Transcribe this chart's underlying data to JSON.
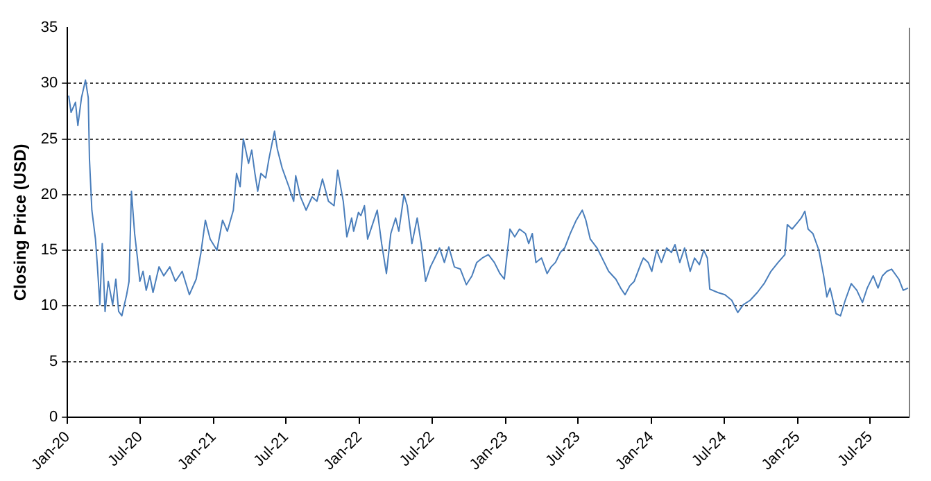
{
  "chart_data": {
    "type": "line",
    "ylabel": "Closing Price (USD)",
    "xlim": [
      "2020-01-01",
      "2025-10-06"
    ],
    "ylim": [
      0,
      35
    ],
    "yticks": [
      0,
      5,
      10,
      15,
      20,
      25,
      30,
      35
    ],
    "xticks": [
      {
        "value": "2020-01-01",
        "label": "Jan-20"
      },
      {
        "value": "2020-07-01",
        "label": "Jul-20"
      },
      {
        "value": "2021-01-01",
        "label": "Jan-21"
      },
      {
        "value": "2021-07-01",
        "label": "Jul-21"
      },
      {
        "value": "2022-01-01",
        "label": "Jan-22"
      },
      {
        "value": "2022-07-01",
        "label": "Jul-22"
      },
      {
        "value": "2023-01-01",
        "label": "Jan-23"
      },
      {
        "value": "2023-07-01",
        "label": "Jul-23"
      },
      {
        "value": "2024-01-01",
        "label": "Jan-24"
      },
      {
        "value": "2024-07-01",
        "label": "Jul-24"
      },
      {
        "value": "2025-01-01",
        "label": "Jan-25"
      },
      {
        "value": "2025-07-01",
        "label": "Jul-25"
      }
    ],
    "grid": "y",
    "legend": false,
    "marker": "none",
    "line_style": "solid",
    "series": [
      {
        "color": "#4a7ebb",
        "x": [
          "2020-01-04",
          "2020-01-10",
          "2020-01-21",
          "2020-01-27",
          "2020-02-05",
          "2020-02-15",
          "2020-02-22",
          "2020-02-25",
          "2020-03-02",
          "2020-03-11",
          "2020-03-16",
          "2020-03-22",
          "2020-03-28",
          "2020-04-04",
          "2020-04-12",
          "2020-04-23",
          "2020-05-01",
          "2020-05-08",
          "2020-05-16",
          "2020-05-28",
          "2020-06-03",
          "2020-06-09",
          "2020-06-17",
          "2020-06-24",
          "2020-06-30",
          "2020-07-08",
          "2020-07-16",
          "2020-07-25",
          "2020-08-02",
          "2020-08-17",
          "2020-08-29",
          "2020-09-13",
          "2020-09-27",
          "2020-10-14",
          "2020-11-01",
          "2020-11-18",
          "2020-11-30",
          "2020-12-11",
          "2020-12-23",
          "2021-01-09",
          "2021-01-23",
          "2021-02-04",
          "2021-02-19",
          "2021-02-27",
          "2021-03-08",
          "2021-03-16",
          "2021-03-29",
          "2021-04-06",
          "2021-04-14",
          "2021-04-21",
          "2021-04-29",
          "2021-05-11",
          "2021-05-19",
          "2021-06-02",
          "2021-06-09",
          "2021-06-21",
          "2021-07-08",
          "2021-07-20",
          "2021-07-25",
          "2021-08-06",
          "2021-08-20",
          "2021-09-04",
          "2021-09-16",
          "2021-09-30",
          "2021-10-15",
          "2021-10-29",
          "2021-11-07",
          "2021-11-21",
          "2021-11-30",
          "2021-12-12",
          "2021-12-17",
          "2021-12-29",
          "2022-01-04",
          "2022-01-13",
          "2022-01-21",
          "2022-02-02",
          "2022-02-14",
          "2022-02-25",
          "2022-03-09",
          "2022-03-20",
          "2022-04-01",
          "2022-04-09",
          "2022-04-22",
          "2022-04-30",
          "2022-05-12",
          "2022-05-25",
          "2022-06-04",
          "2022-06-15",
          "2022-06-27",
          "2022-07-08",
          "2022-07-20",
          "2022-08-01",
          "2022-08-12",
          "2022-08-26",
          "2022-09-10",
          "2022-09-25",
          "2022-10-09",
          "2022-10-21",
          "2022-11-04",
          "2022-11-19",
          "2022-12-04",
          "2022-12-18",
          "2022-12-29",
          "2023-01-12",
          "2023-01-24",
          "2023-02-05",
          "2023-02-20",
          "2023-02-28",
          "2023-03-09",
          "2023-03-18",
          "2023-04-01",
          "2023-04-15",
          "2023-04-25",
          "2023-05-06",
          "2023-05-18",
          "2023-05-29",
          "2023-06-12",
          "2023-06-27",
          "2023-07-12",
          "2023-07-21",
          "2023-08-01",
          "2023-08-18",
          "2023-09-05",
          "2023-09-16",
          "2023-10-04",
          "2023-10-16",
          "2023-10-27",
          "2023-11-08",
          "2023-11-19",
          "2023-12-07",
          "2023-12-12",
          "2023-12-24",
          "2024-01-02",
          "2024-01-14",
          "2024-01-26",
          "2024-02-08",
          "2024-02-20",
          "2024-02-29",
          "2024-03-12",
          "2024-03-24",
          "2024-04-07",
          "2024-04-18",
          "2024-04-30",
          "2024-05-11",
          "2024-05-20",
          "2024-05-26",
          "2024-06-15",
          "2024-07-03",
          "2024-07-20",
          "2024-08-04",
          "2024-08-18",
          "2024-09-04",
          "2024-09-22",
          "2024-10-09",
          "2024-10-26",
          "2024-11-13",
          "2024-11-30",
          "2024-12-06",
          "2024-12-18",
          "2025-01-01",
          "2025-01-10",
          "2025-01-19",
          "2025-01-27",
          "2025-02-08",
          "2025-02-23",
          "2025-03-07",
          "2025-03-15",
          "2025-03-23",
          "2025-04-07",
          "2025-04-18",
          "2025-04-30",
          "2025-05-15",
          "2025-05-29",
          "2025-06-12",
          "2025-06-24",
          "2025-07-09",
          "2025-07-21",
          "2025-08-01",
          "2025-08-12",
          "2025-08-24",
          "2025-09-11",
          "2025-09-22",
          "2025-10-04"
        ],
        "values": [
          28.9,
          27.4,
          28.3,
          26.2,
          28.7,
          30.3,
          28.7,
          23.2,
          18.6,
          16.0,
          13.5,
          10.1,
          15.6,
          9.5,
          12.2,
          10.1,
          12.4,
          9.5,
          9.1,
          11.0,
          12.2,
          20.3,
          16.5,
          14.3,
          12.2,
          13.1,
          11.4,
          12.7,
          11.2,
          13.5,
          12.7,
          13.5,
          12.2,
          13.1,
          11.0,
          12.4,
          14.8,
          17.7,
          16.0,
          15.0,
          17.7,
          16.7,
          18.6,
          21.9,
          20.7,
          25.0,
          22.8,
          24.0,
          21.9,
          20.3,
          21.9,
          21.5,
          23.2,
          25.7,
          24.1,
          22.4,
          20.7,
          19.4,
          21.7,
          19.8,
          18.6,
          19.8,
          19.4,
          21.4,
          19.4,
          19.0,
          22.2,
          19.4,
          16.2,
          17.9,
          16.7,
          18.4,
          18.1,
          19.0,
          16.0,
          17.3,
          18.6,
          15.6,
          12.9,
          16.5,
          17.9,
          16.7,
          20.0,
          19.0,
          15.6,
          17.9,
          15.6,
          12.2,
          13.5,
          14.3,
          15.2,
          13.9,
          15.3,
          13.5,
          13.3,
          11.9,
          12.7,
          13.9,
          14.3,
          14.6,
          13.9,
          12.9,
          12.4,
          16.9,
          16.2,
          16.9,
          16.5,
          15.6,
          16.5,
          13.9,
          14.3,
          12.9,
          13.5,
          13.9,
          14.8,
          15.2,
          16.5,
          17.7,
          18.6,
          17.7,
          16.0,
          15.2,
          13.9,
          13.1,
          12.4,
          11.6,
          11.0,
          11.8,
          12.2,
          13.9,
          14.3,
          13.9,
          13.1,
          15.0,
          13.9,
          15.2,
          14.8,
          15.5,
          13.9,
          15.2,
          13.1,
          14.3,
          13.7,
          15.0,
          14.3,
          11.5,
          11.2,
          11.0,
          10.5,
          9.4,
          10.1,
          10.5,
          11.2,
          12.0,
          13.1,
          13.9,
          14.6,
          17.3,
          16.9,
          17.5,
          17.9,
          18.5,
          16.9,
          16.5,
          15.0,
          12.7,
          10.8,
          11.6,
          9.3,
          9.1,
          10.5,
          12.0,
          11.4,
          10.3,
          11.6,
          12.7,
          11.6,
          12.7,
          13.1,
          13.3,
          12.4,
          11.4,
          11.6
        ]
      }
    ]
  }
}
